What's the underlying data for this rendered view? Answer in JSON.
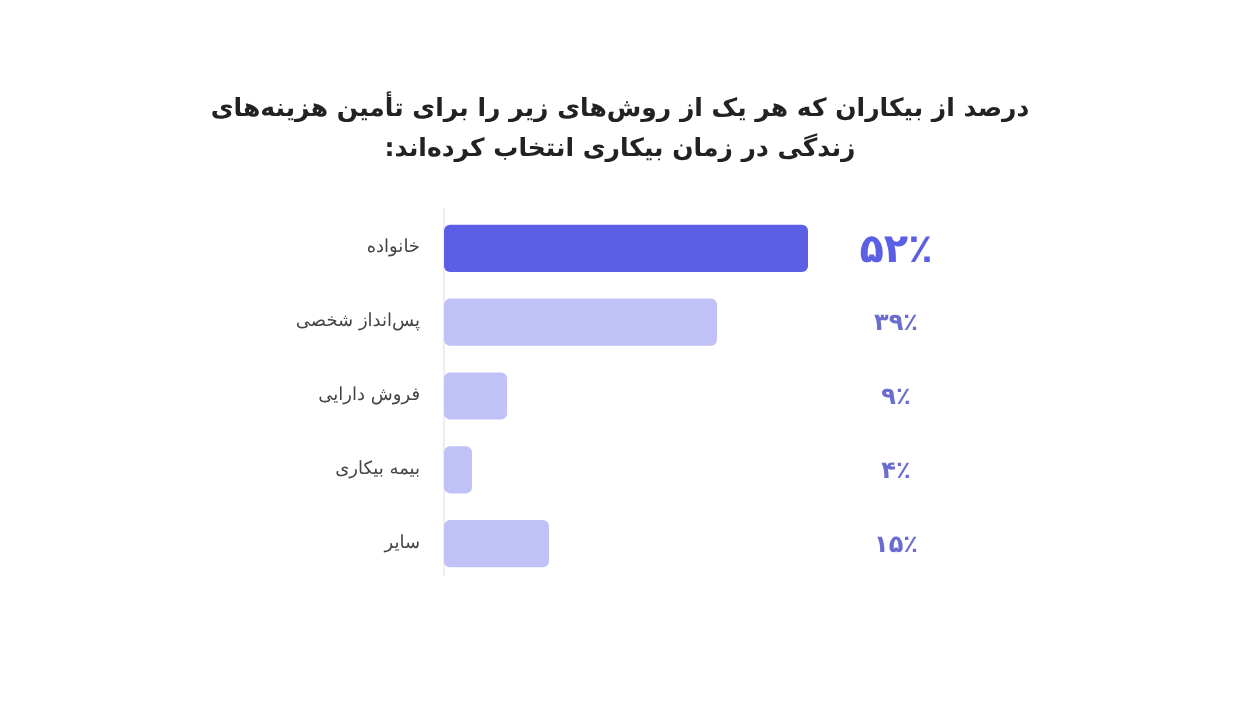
{
  "chart_data": {
    "type": "bar",
    "orientation": "horizontal",
    "title": "درصد از بیکاران که هر یک از روش‌های زیر را برای تأمین هزینه‌های زندگی در زمان بیکاری انتخاب کرده‌اند:",
    "categories": [
      "خانواده",
      "پس‌انداز شخصی",
      "فروش دارایی",
      "بیمه بیکاری",
      "سایر"
    ],
    "values": [
      52,
      39,
      9,
      4,
      15
    ],
    "colors": [
      "#5a5fe6",
      "#bfc1f7",
      "#bfc1f7",
      "#bfc1f7",
      "#bfc1f7"
    ],
    "value_labels": [
      "۵۲٪",
      "۳۹٪",
      "۹٪",
      "۴٪",
      "۱۵٪"
    ]
  }
}
